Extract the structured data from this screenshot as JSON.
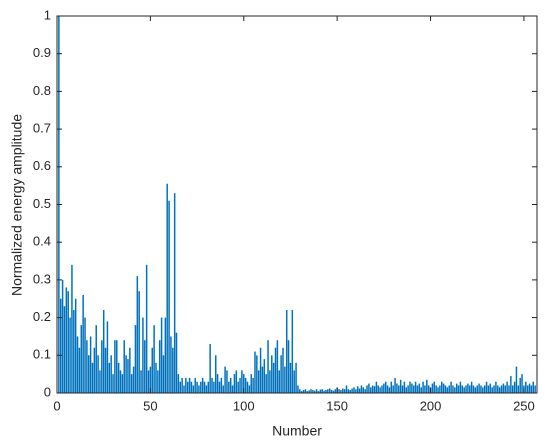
{
  "chart_data": {
    "type": "bar",
    "x_label": "Number",
    "y_label": "Normalized energy amplitude",
    "color": "#0072bd",
    "xlim": [
      0,
      257
    ],
    "ylim": [
      0,
      1
    ],
    "xticks": [
      0,
      50,
      100,
      150,
      200,
      250
    ],
    "yticks": [
      0,
      0.1,
      0.2,
      0.3,
      0.4,
      0.5,
      0.6,
      0.7,
      0.8,
      0.9,
      1
    ],
    "x": [
      1,
      2,
      3,
      4,
      5,
      6,
      7,
      8,
      9,
      10,
      11,
      12,
      13,
      14,
      15,
      16,
      17,
      18,
      19,
      20,
      21,
      22,
      23,
      24,
      25,
      26,
      27,
      28,
      29,
      30,
      31,
      32,
      33,
      34,
      35,
      36,
      37,
      38,
      39,
      40,
      41,
      42,
      43,
      44,
      45,
      46,
      47,
      48,
      49,
      50,
      51,
      52,
      53,
      54,
      55,
      56,
      57,
      58,
      59,
      60,
      61,
      62,
      63,
      64,
      65,
      66,
      67,
      68,
      69,
      70,
      71,
      72,
      73,
      74,
      75,
      76,
      77,
      78,
      79,
      80,
      81,
      82,
      83,
      84,
      85,
      86,
      87,
      88,
      89,
      90,
      91,
      92,
      93,
      94,
      95,
      96,
      97,
      98,
      99,
      100,
      101,
      102,
      103,
      104,
      105,
      106,
      107,
      108,
      109,
      110,
      111,
      112,
      113,
      114,
      115,
      116,
      117,
      118,
      119,
      120,
      121,
      122,
      123,
      124,
      125,
      126,
      127,
      128,
      129,
      130,
      131,
      132,
      133,
      134,
      135,
      136,
      137,
      138,
      139,
      140,
      141,
      142,
      143,
      144,
      145,
      146,
      147,
      148,
      149,
      150,
      151,
      152,
      153,
      154,
      155,
      156,
      157,
      158,
      159,
      160,
      161,
      162,
      163,
      164,
      165,
      166,
      167,
      168,
      169,
      170,
      171,
      172,
      173,
      174,
      175,
      176,
      177,
      178,
      179,
      180,
      181,
      182,
      183,
      184,
      185,
      186,
      187,
      188,
      189,
      190,
      191,
      192,
      193,
      194,
      195,
      196,
      197,
      198,
      199,
      200,
      201,
      202,
      203,
      204,
      205,
      206,
      207,
      208,
      209,
      210,
      211,
      212,
      213,
      214,
      215,
      216,
      217,
      218,
      219,
      220,
      221,
      222,
      223,
      224,
      225,
      226,
      227,
      228,
      229,
      230,
      231,
      232,
      233,
      234,
      235,
      236,
      237,
      238,
      239,
      240,
      241,
      242,
      243,
      244,
      245,
      246,
      247,
      248,
      249,
      250,
      251,
      252,
      253,
      254,
      255,
      256
    ],
    "values": [
      1.0,
      0.25,
      0.3,
      0.23,
      0.28,
      0.27,
      0.2,
      0.34,
      0.22,
      0.25,
      0.15,
      0.12,
      0.18,
      0.26,
      0.2,
      0.14,
      0.1,
      0.15,
      0.08,
      0.12,
      0.18,
      0.1,
      0.06,
      0.14,
      0.22,
      0.12,
      0.19,
      0.08,
      0.1,
      0.05,
      0.14,
      0.14,
      0.08,
      0.06,
      0.05,
      0.14,
      0.1,
      0.09,
      0.12,
      0.05,
      0.07,
      0.18,
      0.31,
      0.27,
      0.06,
      0.2,
      0.14,
      0.34,
      0.06,
      0.07,
      0.12,
      0.18,
      0.08,
      0.06,
      0.14,
      0.2,
      0.1,
      0.2,
      0.555,
      0.51,
      0.15,
      0.12,
      0.53,
      0.16,
      0.05,
      0.03,
      0.04,
      0.02,
      0.04,
      0.03,
      0.04,
      0.03,
      0.02,
      0.04,
      0.03,
      0.02,
      0.03,
      0.04,
      0.03,
      0.02,
      0.03,
      0.13,
      0.04,
      0.03,
      0.1,
      0.05,
      0.03,
      0.04,
      0.02,
      0.07,
      0.06,
      0.03,
      0.04,
      0.02,
      0.05,
      0.06,
      0.03,
      0.04,
      0.06,
      0.05,
      0.04,
      0.03,
      0.02,
      0.05,
      0.04,
      0.11,
      0.1,
      0.06,
      0.12,
      0.07,
      0.09,
      0.05,
      0.14,
      0.06,
      0.1,
      0.08,
      0.12,
      0.14,
      0.06,
      0.1,
      0.12,
      0.07,
      0.22,
      0.14,
      0.08,
      0.22,
      0.06,
      0.08,
      0.02,
      0.01,
      0.005,
      0.008,
      0.01,
      0.005,
      0.007,
      0.01,
      0.008,
      0.006,
      0.01,
      0.005,
      0.009,
      0.01,
      0.006,
      0.008,
      0.01,
      0.012,
      0.008,
      0.006,
      0.01,
      0.015,
      0.01,
      0.008,
      0.012,
      0.01,
      0.02,
      0.01,
      0.008,
      0.012,
      0.015,
      0.01,
      0.018,
      0.012,
      0.02,
      0.015,
      0.01,
      0.02,
      0.025,
      0.015,
      0.02,
      0.018,
      0.03,
      0.02,
      0.015,
      0.02,
      0.025,
      0.03,
      0.02,
      0.015,
      0.03,
      0.02,
      0.04,
      0.025,
      0.02,
      0.035,
      0.02,
      0.03,
      0.015,
      0.02,
      0.03,
      0.025,
      0.02,
      0.03,
      0.02,
      0.025,
      0.015,
      0.03,
      0.02,
      0.035,
      0.02,
      0.015,
      0.025,
      0.03,
      0.02,
      0.015,
      0.02,
      0.03,
      0.025,
      0.02,
      0.015,
      0.02,
      0.03,
      0.02,
      0.015,
      0.025,
      0.02,
      0.03,
      0.02,
      0.015,
      0.02,
      0.025,
      0.02,
      0.03,
      0.02,
      0.015,
      0.02,
      0.025,
      0.02,
      0.015,
      0.02,
      0.03,
      0.02,
      0.025,
      0.015,
      0.02,
      0.03,
      0.02,
      0.015,
      0.02,
      0.025,
      0.02,
      0.03,
      0.02,
      0.045,
      0.02,
      0.03,
      0.07,
      0.02,
      0.04,
      0.05,
      0.02,
      0.03,
      0.02,
      0.025,
      0.02,
      0.03,
      0.02
    ]
  }
}
